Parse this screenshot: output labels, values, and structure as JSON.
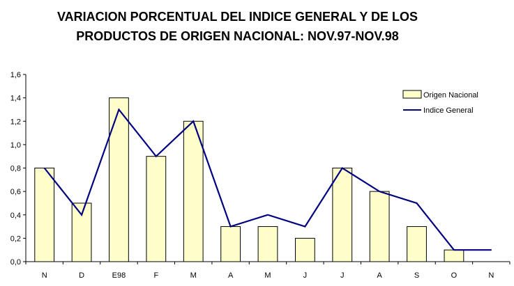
{
  "chart_data": {
    "type": "bar",
    "title_lines": [
      "VARIACION PORCENTUAL DEL INDICE GENERAL Y DE LOS",
      "PRODUCTOS DE ORIGEN NACIONAL: NOV.97-NOV.98"
    ],
    "categories": [
      "N",
      "D",
      "E98",
      "F",
      "M",
      "A",
      "M",
      "J",
      "J",
      "A",
      "S",
      "O",
      "N"
    ],
    "series": [
      {
        "name": "Origen Nacional",
        "kind": "bar",
        "values": [
          0.8,
          0.5,
          1.4,
          0.9,
          1.2,
          0.3,
          0.3,
          0.2,
          0.8,
          0.6,
          0.3,
          0.1,
          null
        ],
        "color": "#FFFFCC"
      },
      {
        "name": "Indice General",
        "kind": "line",
        "values": [
          0.8,
          0.4,
          1.3,
          0.9,
          1.2,
          0.3,
          0.4,
          0.3,
          0.8,
          0.6,
          0.5,
          0.1,
          0.1
        ],
        "color": "#000080"
      }
    ],
    "ylim": [
      0,
      1.6
    ],
    "yticks": [
      "0,0",
      "0,2",
      "0,4",
      "0,6",
      "0,8",
      "1,0",
      "1,2",
      "1,4",
      "1,6"
    ],
    "ytick_values": [
      0,
      0.2,
      0.4,
      0.6,
      0.8,
      1.0,
      1.2,
      1.4,
      1.6
    ],
    "grid": false,
    "legend_position": "top-right"
  }
}
